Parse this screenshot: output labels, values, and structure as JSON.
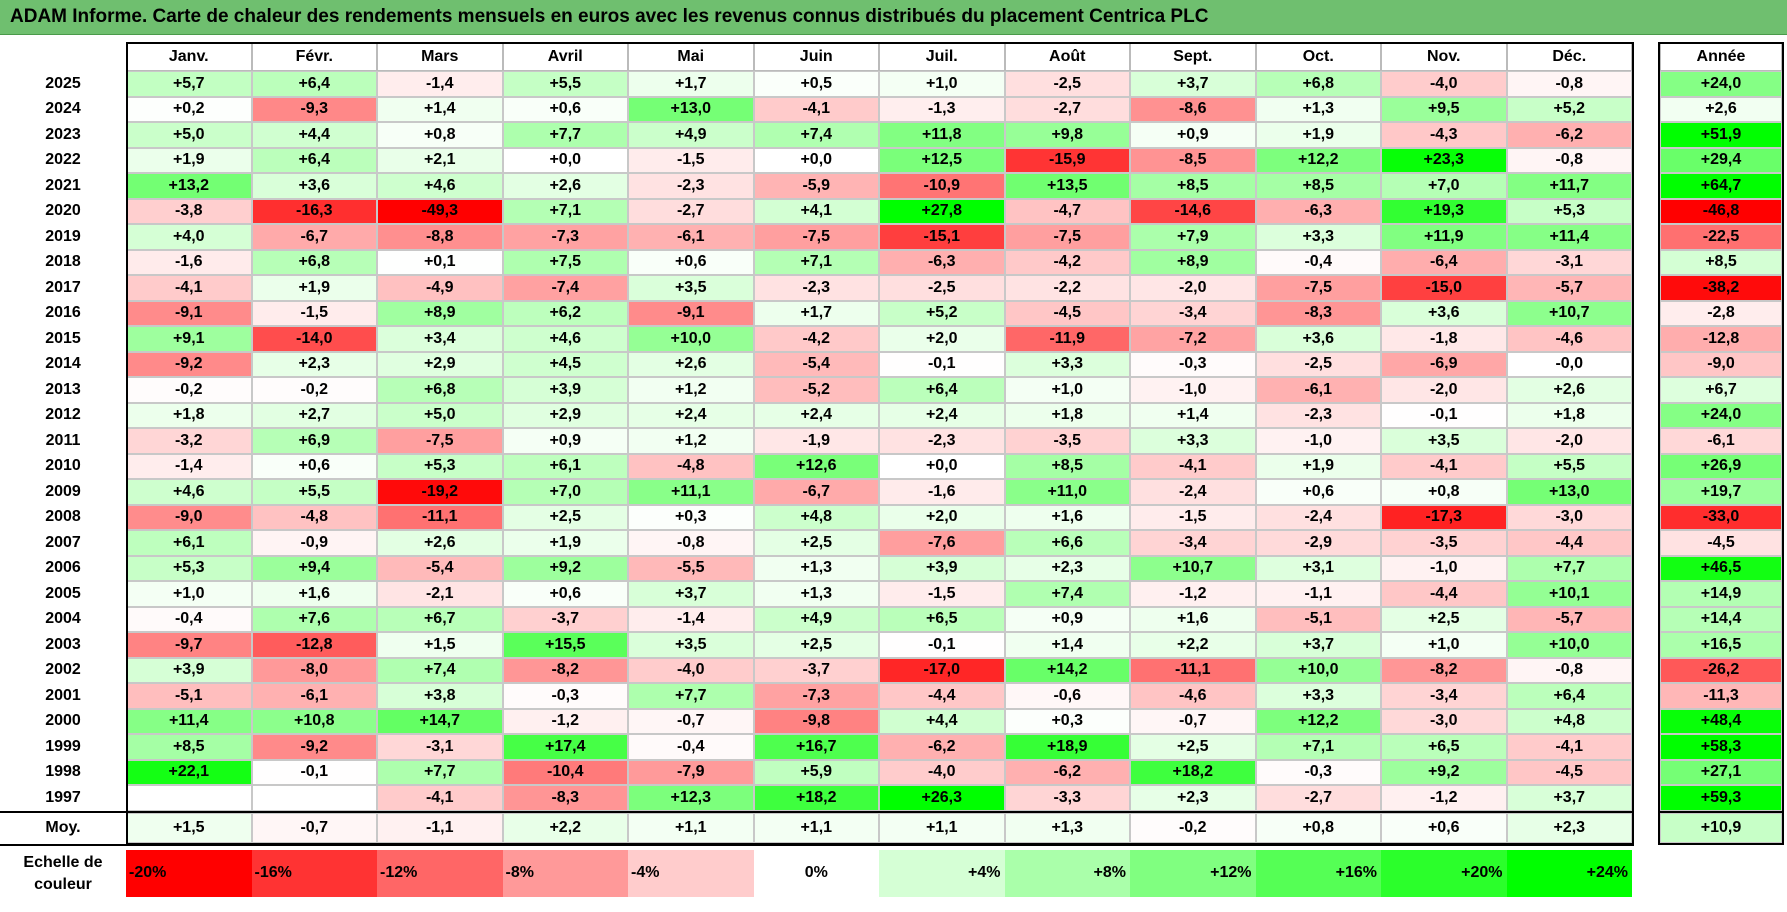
{
  "title": "ADAM Informe. Carte de chaleur des rendements mensuels en euros avec les revenus connus distribués du placement Centrica PLC",
  "chart_data": {
    "type": "heatmap",
    "title": "ADAM Informe. Carte de chaleur des rendements mensuels en euros avec les revenus connus distribués du placement Centrica PLC",
    "columns": [
      "Janv.",
      "Févr.",
      "Mars",
      "Avril",
      "Mai",
      "Juin",
      "Juil.",
      "Août",
      "Sept.",
      "Oct.",
      "Nov.",
      "Déc."
    ],
    "year_column_label": "Année",
    "rows": [
      {
        "year": "2025",
        "values": [
          "+5,7",
          "+6,4",
          "-1,4",
          "+5,5",
          "+1,7",
          "+0,5",
          "+1,0",
          "-2,5",
          "+3,7",
          "+6,8",
          "-4,0",
          "-0,8"
        ],
        "annual": "+24,0"
      },
      {
        "year": "2024",
        "values": [
          "+0,2",
          "-9,3",
          "+1,4",
          "+0,6",
          "+13,0",
          "-4,1",
          "-1,3",
          "-2,7",
          "-8,6",
          "+1,3",
          "+9,5",
          "+5,2"
        ],
        "annual": "+2,6"
      },
      {
        "year": "2023",
        "values": [
          "+5,0",
          "+4,4",
          "+0,8",
          "+7,7",
          "+4,9",
          "+7,4",
          "+11,8",
          "+9,8",
          "+0,9",
          "+1,9",
          "-4,3",
          "-6,2"
        ],
        "annual": "+51,9"
      },
      {
        "year": "2022",
        "values": [
          "+1,9",
          "+6,4",
          "+2,1",
          "+0,0",
          "-1,5",
          "+0,0",
          "+12,5",
          "-15,9",
          "-8,5",
          "+12,2",
          "+23,3",
          "-0,8"
        ],
        "annual": "+29,4"
      },
      {
        "year": "2021",
        "values": [
          "+13,2",
          "+3,6",
          "+4,6",
          "+2,6",
          "-2,3",
          "-5,9",
          "-10,9",
          "+13,5",
          "+8,5",
          "+8,5",
          "+7,0",
          "+11,7"
        ],
        "annual": "+64,7"
      },
      {
        "year": "2020",
        "values": [
          "-3,8",
          "-16,3",
          "-49,3",
          "+7,1",
          "-2,7",
          "+4,1",
          "+27,8",
          "-4,7",
          "-14,6",
          "-6,3",
          "+19,3",
          "+5,3"
        ],
        "annual": "-46,8"
      },
      {
        "year": "2019",
        "values": [
          "+4,0",
          "-6,7",
          "-8,8",
          "-7,3",
          "-6,1",
          "-7,5",
          "-15,1",
          "-7,5",
          "+7,9",
          "+3,3",
          "+11,9",
          "+11,4"
        ],
        "annual": "-22,5"
      },
      {
        "year": "2018",
        "values": [
          "-1,6",
          "+6,8",
          "+0,1",
          "+7,5",
          "+0,6",
          "+7,1",
          "-6,3",
          "-4,2",
          "+8,9",
          "-0,4",
          "-6,4",
          "-3,1"
        ],
        "annual": "+8,5"
      },
      {
        "year": "2017",
        "values": [
          "-4,1",
          "+1,9",
          "-4,9",
          "-7,4",
          "+3,5",
          "-2,3",
          "-2,5",
          "-2,2",
          "-2,0",
          "-7,5",
          "-15,0",
          "-5,7"
        ],
        "annual": "-38,2"
      },
      {
        "year": "2016",
        "values": [
          "-9,1",
          "-1,5",
          "+8,9",
          "+6,2",
          "-9,1",
          "+1,7",
          "+5,2",
          "-4,5",
          "-3,4",
          "-8,3",
          "+3,6",
          "+10,7"
        ],
        "annual": "-2,8"
      },
      {
        "year": "2015",
        "values": [
          "+9,1",
          "-14,0",
          "+3,4",
          "+4,6",
          "+10,0",
          "-4,2",
          "+2,0",
          "-11,9",
          "-7,2",
          "+3,6",
          "-1,8",
          "-4,6"
        ],
        "annual": "-12,8"
      },
      {
        "year": "2014",
        "values": [
          "-9,2",
          "+2,3",
          "+2,9",
          "+4,5",
          "+2,6",
          "-5,4",
          "-0,1",
          "+3,3",
          "-0,3",
          "-2,5",
          "-6,9",
          "-0,0"
        ],
        "annual": "-9,0"
      },
      {
        "year": "2013",
        "values": [
          "-0,2",
          "-0,2",
          "+6,8",
          "+3,9",
          "+1,2",
          "-5,2",
          "+6,4",
          "+1,0",
          "-1,0",
          "-6,1",
          "-2,0",
          "+2,6"
        ],
        "annual": "+6,7"
      },
      {
        "year": "2012",
        "values": [
          "+1,8",
          "+2,7",
          "+5,0",
          "+2,9",
          "+2,4",
          "+2,4",
          "+2,4",
          "+1,8",
          "+1,4",
          "-2,3",
          "-0,1",
          "+1,8"
        ],
        "annual": "+24,0"
      },
      {
        "year": "2011",
        "values": [
          "-3,2",
          "+6,9",
          "-7,5",
          "+0,9",
          "+1,2",
          "-1,9",
          "-2,3",
          "-3,5",
          "+3,3",
          "-1,0",
          "+3,5",
          "-2,0"
        ],
        "annual": "-6,1"
      },
      {
        "year": "2010",
        "values": [
          "-1,4",
          "+0,6",
          "+5,3",
          "+6,1",
          "-4,8",
          "+12,6",
          "+0,0",
          "+8,5",
          "-4,1",
          "+1,9",
          "-4,1",
          "+5,5"
        ],
        "annual": "+26,9"
      },
      {
        "year": "2009",
        "values": [
          "+4,6",
          "+5,5",
          "-19,2",
          "+7,0",
          "+11,1",
          "-6,7",
          "-1,6",
          "+11,0",
          "-2,4",
          "+0,6",
          "+0,8",
          "+13,0"
        ],
        "annual": "+19,7"
      },
      {
        "year": "2008",
        "values": [
          "-9,0",
          "-4,8",
          "-11,1",
          "+2,5",
          "+0,3",
          "+4,8",
          "+2,0",
          "+1,6",
          "-1,5",
          "-2,4",
          "-17,3",
          "-3,0"
        ],
        "annual": "-33,0"
      },
      {
        "year": "2007",
        "values": [
          "+6,1",
          "-0,9",
          "+2,6",
          "+1,9",
          "-0,8",
          "+2,5",
          "-7,6",
          "+6,6",
          "-3,4",
          "-2,9",
          "-3,5",
          "-4,4"
        ],
        "annual": "-4,5"
      },
      {
        "year": "2006",
        "values": [
          "+5,3",
          "+9,4",
          "-5,4",
          "+9,2",
          "-5,5",
          "+1,3",
          "+3,9",
          "+2,3",
          "+10,7",
          "+3,1",
          "-1,0",
          "+7,7"
        ],
        "annual": "+46,5"
      },
      {
        "year": "2005",
        "values": [
          "+1,0",
          "+1,6",
          "-2,1",
          "+0,6",
          "+3,7",
          "+1,3",
          "-1,5",
          "+7,4",
          "-1,2",
          "-1,1",
          "-4,4",
          "+10,1"
        ],
        "annual": "+14,9"
      },
      {
        "year": "2004",
        "values": [
          "-0,4",
          "+7,6",
          "+6,7",
          "-3,7",
          "-1,4",
          "+4,9",
          "+6,5",
          "+0,9",
          "+1,6",
          "-5,1",
          "+2,5",
          "-5,7"
        ],
        "annual": "+14,4"
      },
      {
        "year": "2003",
        "values": [
          "-9,7",
          "-12,8",
          "+1,5",
          "+15,5",
          "+3,5",
          "+2,5",
          "-0,1",
          "+1,4",
          "+2,2",
          "+3,7",
          "+1,0",
          "+10,0"
        ],
        "annual": "+16,5"
      },
      {
        "year": "2002",
        "values": [
          "+3,9",
          "-8,0",
          "+7,4",
          "-8,2",
          "-4,0",
          "-3,7",
          "-17,0",
          "+14,2",
          "-11,1",
          "+10,0",
          "-8,2",
          "-0,8"
        ],
        "annual": "-26,2"
      },
      {
        "year": "2001",
        "values": [
          "-5,1",
          "-6,1",
          "+3,8",
          "-0,3",
          "+7,7",
          "-7,3",
          "-4,4",
          "-0,6",
          "-4,6",
          "+3,3",
          "-3,4",
          "+6,4"
        ],
        "annual": "-11,3"
      },
      {
        "year": "2000",
        "values": [
          "+11,4",
          "+10,8",
          "+14,7",
          "-1,2",
          "-0,7",
          "-9,8",
          "+4,4",
          "+0,3",
          "-0,7",
          "+12,2",
          "-3,0",
          "+4,8"
        ],
        "annual": "+48,4"
      },
      {
        "year": "1999",
        "values": [
          "+8,5",
          "-9,2",
          "-3,1",
          "+17,4",
          "-0,4",
          "+16,7",
          "-6,2",
          "+18,9",
          "+2,5",
          "+7,1",
          "+6,5",
          "-4,1"
        ],
        "annual": "+58,3"
      },
      {
        "year": "1998",
        "values": [
          "+22,1",
          "-0,1",
          "+7,7",
          "-10,4",
          "-7,9",
          "+5,9",
          "-4,0",
          "-6,2",
          "+18,2",
          "-0,3",
          "+9,2",
          "-4,5"
        ],
        "annual": "+27,1"
      },
      {
        "year": "1997",
        "values": [
          "",
          "",
          "-4,1",
          "-8,3",
          "+12,3",
          "+18,2",
          "+26,3",
          "-3,3",
          "+2,3",
          "-2,7",
          "-1,2",
          "+3,7"
        ],
        "annual": "+59,3"
      }
    ],
    "average": {
      "label": "Moy.",
      "values": [
        "+1,5",
        "-0,7",
        "-1,1",
        "+2,2",
        "+1,1",
        "+1,1",
        "+1,1",
        "+1,3",
        "-0,2",
        "+0,8",
        "+0,6",
        "+2,3"
      ],
      "annual": "+10,9"
    },
    "color_scale": {
      "label": "Echelle de couleur",
      "stops": [
        "-20%",
        "-16%",
        "-12%",
        "-8%",
        "-4%",
        "0%",
        "+4%",
        "+8%",
        "+12%",
        "+16%",
        "+20%",
        "+24%"
      ],
      "negative_color": "#ff0000",
      "neutral_color": "#ffffff",
      "positive_color": "#00ff00"
    }
  }
}
